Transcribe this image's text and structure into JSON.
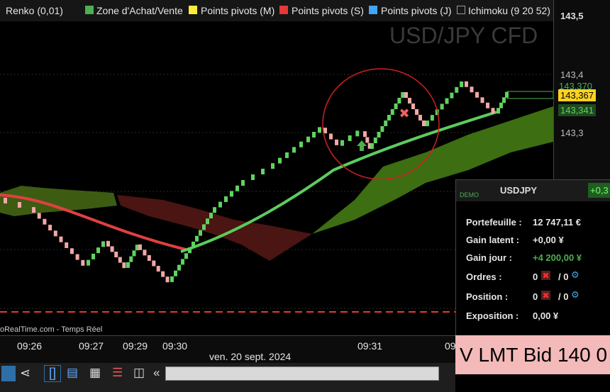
{
  "legend": [
    "Renko (0,01)",
    "Zone d'Achat/Vente",
    "Points pivots (M)",
    "Points pivots (S)",
    "Points pivots (J)",
    "Ichimoku (9 20 52)"
  ],
  "watermark": "USD/JPY CFD",
  "price_axis": [
    "143,5",
    "143,4",
    "143,370",
    "143,367",
    "143,341",
    "143,3"
  ],
  "time_axis": [
    "09:26",
    "09:27",
    "09:29",
    "09:30",
    "09:31",
    "09"
  ],
  "date": "ven. 20 sept. 2024",
  "source": "oRealTime.com - Temps Réel",
  "panel": {
    "demo": "DEMO",
    "symbol": "USDJPY",
    "change": "+0,3",
    "rows": [
      [
        "Portefeuille :",
        "12 747,11 €"
      ],
      [
        "Gain latent :",
        "+0,00 ¥"
      ],
      [
        "Gain jour :",
        "+4 200,00 ¥"
      ],
      [
        "Ordres :",
        "0",
        "/ 0"
      ],
      [
        "Position :",
        "0",
        "/ 0"
      ],
      [
        "Exposition :",
        "0,00 ¥"
      ]
    ]
  },
  "order": "V LMT Bid 140 0"
}
